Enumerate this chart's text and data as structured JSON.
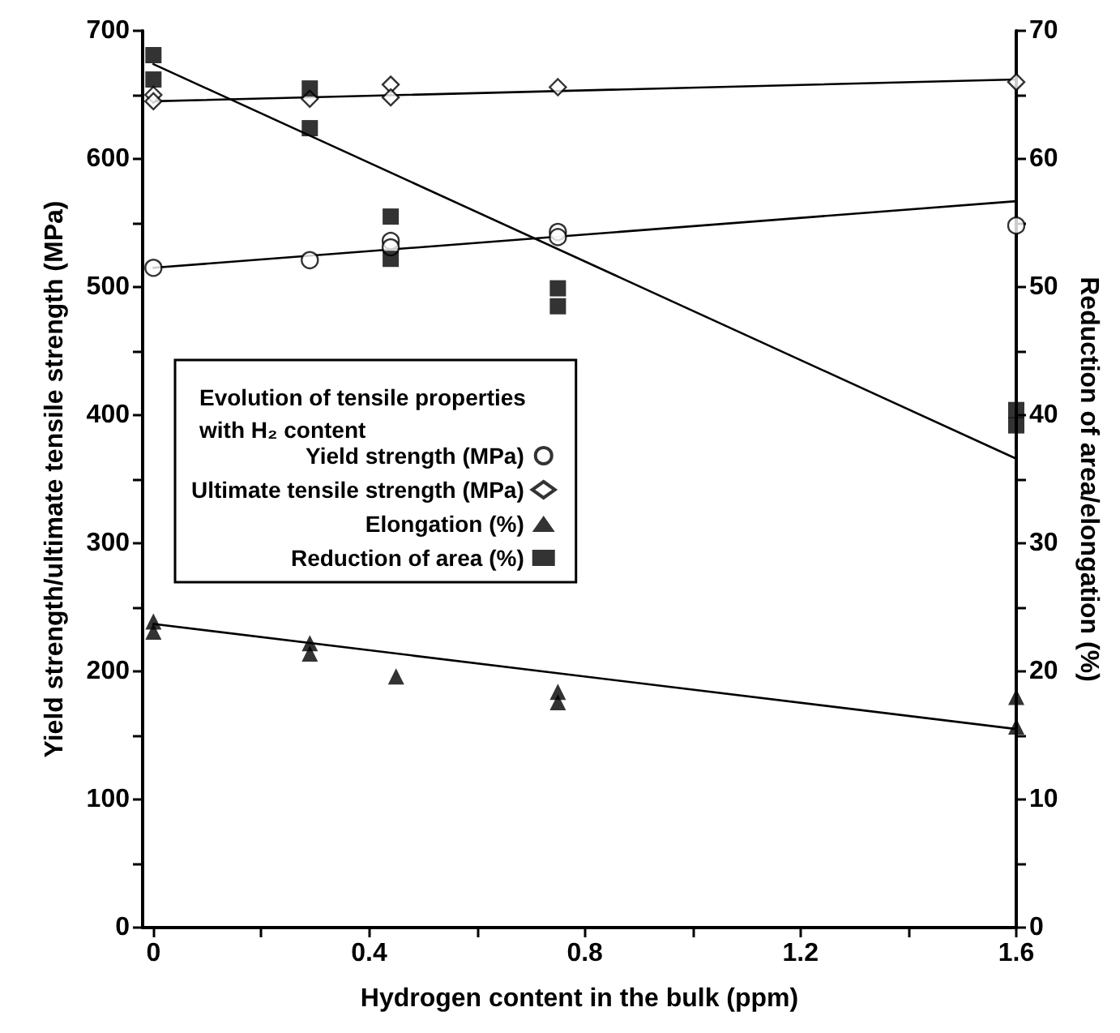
{
  "chart_data": {
    "type": "scatter",
    "xlabel": "Hydrogen content in the bulk (ppm)",
    "ylabel": "Yield strength/ultimate tensile strength (MPa)",
    "y2label": "Reduction of area/elongation (%)",
    "legend_title": "Evolution of tensile properties with H₂ content",
    "legend": "left",
    "grid": false,
    "xlim": [
      -0.02,
      1.6
    ],
    "xticks": [
      0,
      {
        "value": 0.2,
        "label": null
      },
      0.4,
      {
        "value": 0.6,
        "label": null
      },
      0.8,
      {
        "value": 1.0,
        "label": null
      },
      1.2,
      {
        "value": 1.4,
        "label": null
      },
      1.6
    ],
    "ylim": [
      0,
      700
    ],
    "yticks": [
      0,
      {
        "value": 50,
        "label": null
      },
      100,
      {
        "value": 150,
        "label": null
      },
      200,
      {
        "value": 250,
        "label": null
      },
      300,
      {
        "value": 350,
        "label": null
      },
      400,
      {
        "value": 450,
        "label": null
      },
      500,
      {
        "value": 550,
        "label": null
      },
      600,
      {
        "value": 650,
        "label": null
      },
      700
    ],
    "y2lim": [
      0,
      70
    ],
    "y2ticks": [
      0,
      {
        "value": 5,
        "label": null
      },
      10,
      {
        "value": 15,
        "label": null
      },
      20,
      {
        "value": 25,
        "label": null
      },
      30,
      {
        "value": 35,
        "label": null
      },
      40,
      {
        "value": 45,
        "label": null
      },
      50,
      {
        "value": 55,
        "label": null
      },
      60,
      {
        "value": 65,
        "label": null
      },
      70
    ],
    "series": [
      {
        "name": "Yield strength (MPa)",
        "marker": "circle",
        "color": "#000000",
        "x": [
          0,
          0.29,
          0.44,
          0.44,
          0.75,
          0.75,
          1.6
        ],
        "values": [
          515,
          521,
          536,
          531,
          543,
          539,
          548
        ]
      },
      {
        "name": "Ultimate tensile strength (MPa)",
        "marker": "diamond",
        "color": "#000000",
        "x": [
          0,
          0,
          0.29,
          0.44,
          0.44,
          0.75,
          1.6
        ],
        "values": [
          650,
          645,
          647,
          658,
          648,
          656,
          660
        ]
      },
      {
        "name": "Elongation (%)",
        "marker": "triangle",
        "axis": "y2",
        "color": "#000000",
        "x": [
          0,
          0,
          0.29,
          0.29,
          0.45,
          0.75,
          0.75,
          1.6,
          1.6
        ],
        "values": [
          23.9,
          23.1,
          22.2,
          21.4,
          19.6,
          18.4,
          17.6,
          18.0,
          15.7
        ]
      },
      {
        "name": "Reduction of area (%)",
        "marker": "square",
        "axis": "y2",
        "color": "#000000",
        "x": [
          0,
          0,
          0.29,
          0.29,
          0.44,
          0.44,
          0.75,
          0.75,
          1.6,
          1.6
        ],
        "values": [
          68.1,
          66.2,
          65.5,
          62.4,
          55.5,
          52.2,
          49.9,
          48.5,
          40.4,
          39.2
        ]
      },
      {
        "type": "line",
        "marker": "none",
        "color": "#000000",
        "x": [
          0,
          1.6
        ],
        "values": [
          515,
          567
        ]
      },
      {
        "type": "line",
        "marker": "none",
        "color": "#000000",
        "x": [
          0,
          1.6
        ],
        "values": [
          645,
          662
        ]
      },
      {
        "type": "line",
        "marker": "none",
        "axis": "y2",
        "color": "#000000",
        "x": [
          0,
          1.6
        ],
        "values": [
          23.7,
          15.5
        ]
      },
      {
        "type": "line",
        "marker": "none",
        "axis": "y2",
        "color": "#000000",
        "x": [
          0,
          1.6
        ],
        "values": [
          67.4,
          36.6
        ]
      }
    ]
  }
}
